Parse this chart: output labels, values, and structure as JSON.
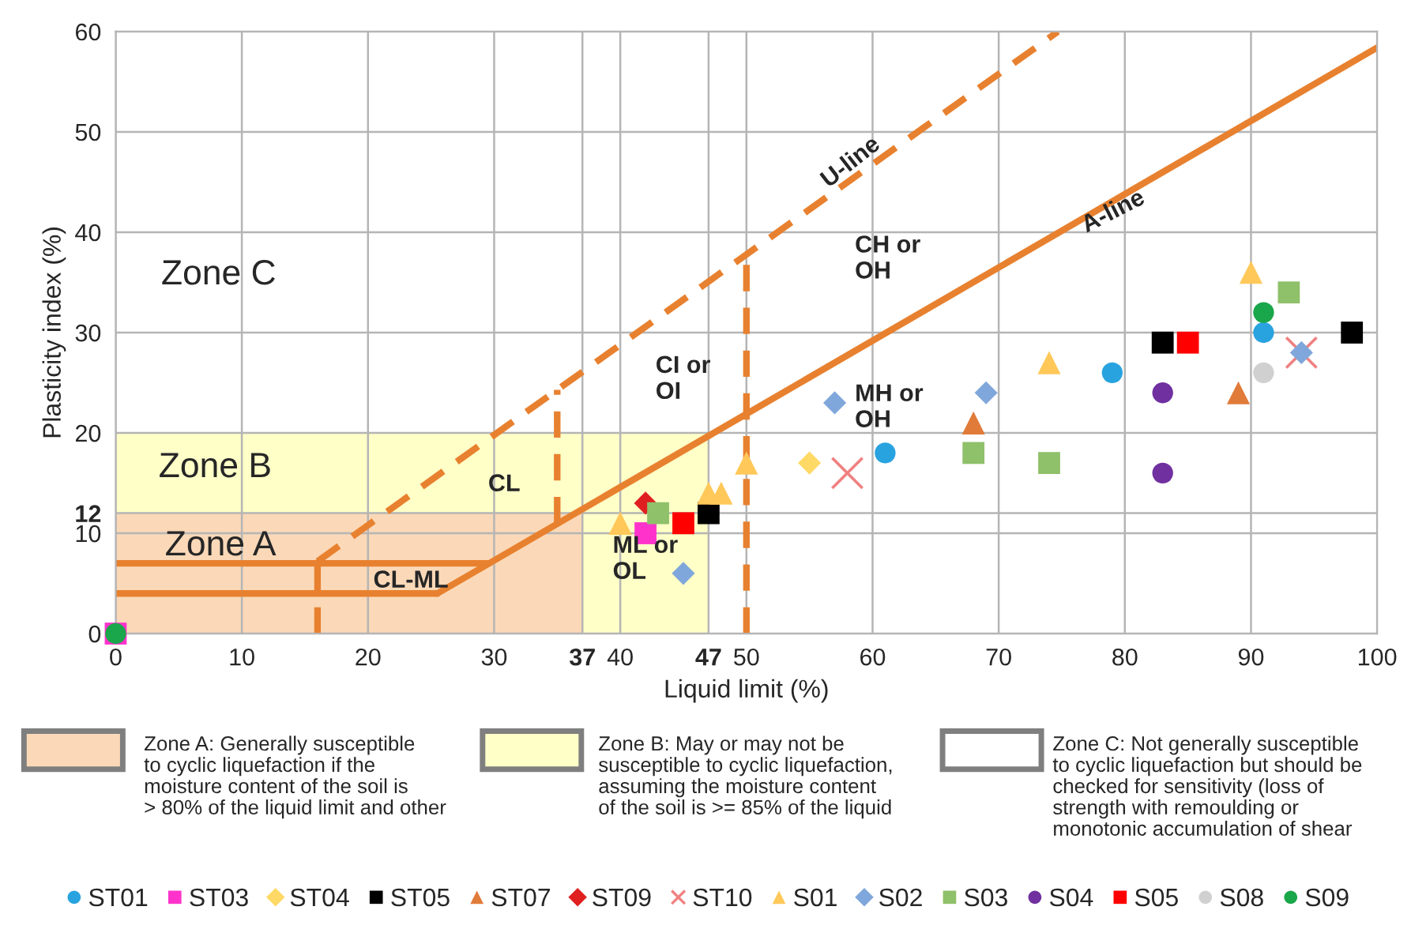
{
  "chart_data": {
    "type": "scatter",
    "xlabel": "Liquid limit (%)",
    "ylabel": "Plasticity index (%)",
    "xlim": [
      0,
      100
    ],
    "ylim": [
      0,
      60
    ],
    "xticks": [
      0,
      10,
      20,
      30,
      37,
      40,
      47,
      50,
      60,
      70,
      80,
      90,
      100
    ],
    "yticks": [
      0,
      10,
      12,
      20,
      30,
      40,
      50,
      60
    ],
    "grid": true,
    "legend": "bottom",
    "series": [
      {
        "type": "area",
        "color": "#ffffc8",
        "x": [
          0,
          47
        ],
        "values": [
          20,
          20
        ]
      },
      {
        "type": "area",
        "color": "#fbd9b8",
        "x": [
          0,
          37
        ],
        "values": [
          12,
          12
        ]
      },
      {
        "type": "line",
        "color": "#e8812f",
        "line_style": "solid",
        "x": [
          0,
          29.6
        ],
        "values": [
          7,
          7
        ]
      },
      {
        "type": "line",
        "color": "#e8812f",
        "line_style": "solid",
        "x": [
          0,
          25.5
        ],
        "values": [
          4,
          4
        ]
      },
      {
        "type": "line",
        "color": "#e8812f",
        "line_style": "solid",
        "x": [
          25.5,
          100
        ],
        "values": [
          4,
          58.4
        ]
      },
      {
        "type": "line",
        "color": "#e8812f",
        "line_style": "dashed",
        "x": [
          16,
          74.7
        ],
        "values": [
          7.2,
          60
        ]
      },
      {
        "type": "line",
        "color": "#e8812f",
        "line_style": "dashed",
        "x": [
          16,
          16
        ],
        "values": [
          0,
          7.2
        ]
      },
      {
        "type": "line",
        "color": "#e8812f",
        "line_style": "dashed",
        "x": [
          35,
          35
        ],
        "values": [
          11,
          24.3
        ]
      },
      {
        "type": "line",
        "color": "#e8812f",
        "line_style": "dashed",
        "x": [
          50,
          50
        ],
        "values": [
          0,
          37.8
        ]
      },
      {
        "name": "ST01",
        "color": "#29a3e0",
        "marker": "circle",
        "x": [
          61,
          79,
          91
        ],
        "values": [
          18,
          26,
          30
        ]
      },
      {
        "name": "ST03",
        "color": "#ff33cc",
        "marker": "square",
        "x": [
          0,
          42
        ],
        "values": [
          0,
          10
        ]
      },
      {
        "name": "ST04",
        "color": "#ffd966",
        "marker": "diamond",
        "x": [
          55
        ],
        "values": [
          17
        ]
      },
      {
        "name": "ST05",
        "color": "#000000",
        "marker": "square",
        "x": [
          47,
          83,
          98
        ],
        "values": [
          12,
          29,
          30
        ]
      },
      {
        "name": "ST07",
        "color": "#e07b39",
        "marker": "triangle",
        "x": [
          68,
          89
        ],
        "values": [
          21,
          24
        ]
      },
      {
        "name": "ST09",
        "color": "#e02020",
        "marker": "diamond",
        "x": [
          42
        ],
        "values": [
          13
        ]
      },
      {
        "name": "ST10",
        "color": "#f08080",
        "marker": "cross",
        "x": [
          58,
          94
        ],
        "values": [
          16,
          28
        ]
      },
      {
        "name": "S01",
        "color": "#ffc859",
        "marker": "triangle",
        "x": [
          40,
          47,
          48,
          50,
          74,
          90
        ],
        "values": [
          11,
          14,
          14,
          17,
          27,
          36
        ]
      },
      {
        "name": "S02",
        "color": "#7fa7db",
        "marker": "diamond",
        "x": [
          45,
          57,
          69,
          94
        ],
        "values": [
          6,
          23,
          24,
          28
        ]
      },
      {
        "name": "S03",
        "color": "#8fc06a",
        "marker": "square",
        "x": [
          43,
          68,
          74,
          93
        ],
        "values": [
          12,
          18,
          17,
          34
        ]
      },
      {
        "name": "S04",
        "color": "#7030a0",
        "marker": "circle",
        "x": [
          83,
          83
        ],
        "values": [
          24,
          16
        ]
      },
      {
        "name": "S05",
        "color": "#ff0000",
        "marker": "square",
        "x": [
          45,
          85
        ],
        "values": [
          11,
          29
        ]
      },
      {
        "name": "S08",
        "color": "#d0d0d0",
        "marker": "circle",
        "x": [
          91
        ],
        "values": [
          26
        ]
      },
      {
        "name": "S09",
        "color": "#1aa64a",
        "marker": "circle",
        "x": [
          0,
          91
        ],
        "values": [
          0,
          32
        ]
      }
    ],
    "annotations": [
      "Zone C",
      "Zone B",
      "Zone A",
      "CL",
      "CL-ML",
      "CI or\nOI",
      "ML or\nOL",
      "MH or\nOH",
      "CH or\nOH",
      "U-line",
      {
        "text": "A-line",
        "x": 79.1,
        "y": 42.0
      },
      "Zone A: Generally susceptible\nto cyclic liquefaction if the\nmoisture content of the soil is\n> 80% of the liquid limit and other",
      "Zone B: May or may not be\nsusceptible to cyclic liquefaction,\nassuming the moisture content\nof the soil is >= 85% of the liquid",
      "Zone C: Not generally susceptible\nto cyclic liquefaction but should be\nchecked for sensitivity (loss of\nstrength with remoulding or\nmonotonic accumulation of shear"
    ]
  }
}
